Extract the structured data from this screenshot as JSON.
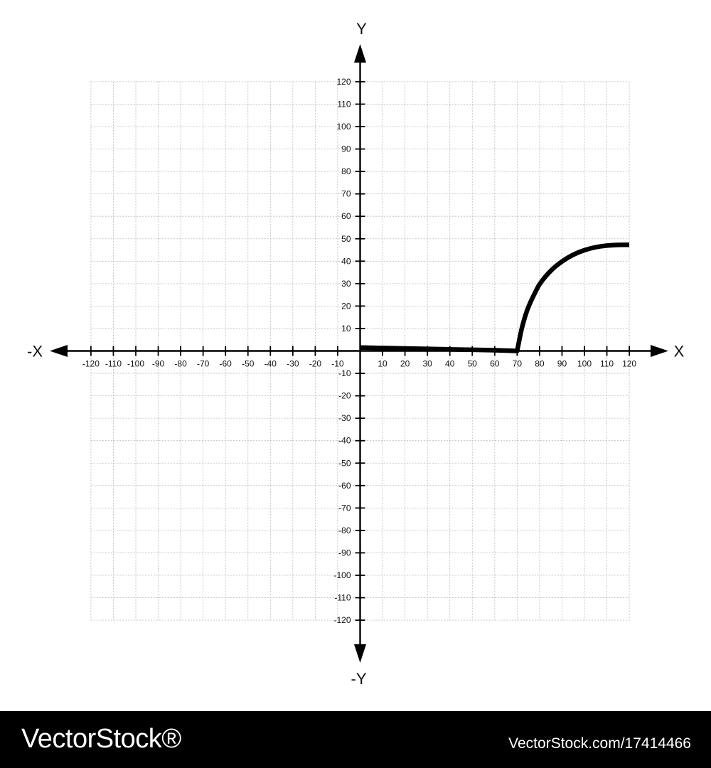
{
  "chart_data": {
    "type": "line",
    "xlim": [
      -120,
      120
    ],
    "ylim": [
      -120,
      120
    ],
    "x_ticks": [
      -120,
      -110,
      -100,
      -90,
      -80,
      -70,
      -60,
      -50,
      -40,
      -30,
      -20,
      -10,
      10,
      20,
      30,
      40,
      50,
      60,
      70,
      80,
      90,
      100,
      110,
      120
    ],
    "y_ticks": [
      120,
      110,
      100,
      90,
      80,
      70,
      60,
      50,
      40,
      30,
      20,
      10,
      -10,
      -20,
      -30,
      -40,
      -50,
      -60,
      -70,
      -80,
      -90,
      -100,
      -110,
      -120
    ],
    "grid": true,
    "grid_step": 10,
    "axis_labels": {
      "x_positive": "X",
      "x_negative": "-X",
      "y_positive": "Y",
      "y_negative": "-Y"
    },
    "series": [
      {
        "color": "#000000",
        "points": [
          [
            0,
            1.5
          ],
          [
            10,
            1.3
          ],
          [
            20,
            1.1
          ],
          [
            30,
            0.9
          ],
          [
            40,
            0.7
          ],
          [
            50,
            0.5
          ],
          [
            60,
            0.3
          ],
          [
            70,
            0
          ],
          [
            71,
            5
          ],
          [
            72,
            10
          ],
          [
            74,
            17
          ],
          [
            76,
            22
          ],
          [
            78,
            26
          ],
          [
            80,
            30
          ],
          [
            85,
            36
          ],
          [
            90,
            40
          ],
          [
            95,
            43
          ],
          [
            100,
            45
          ],
          [
            105,
            46.3
          ],
          [
            110,
            47
          ],
          [
            115,
            47.3
          ],
          [
            120,
            47.3
          ]
        ]
      }
    ]
  },
  "watermark": {
    "brand": "VectorStock®",
    "stock_ref": "VectorStock.com/17414466"
  }
}
